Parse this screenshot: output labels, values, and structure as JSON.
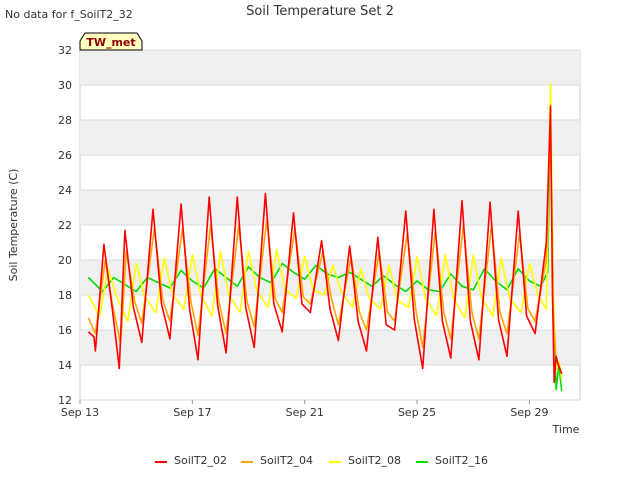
{
  "chart_data": {
    "type": "line",
    "title": "Soil Temperature Set 2",
    "no_data_note": "No data for f_SoilT2_32",
    "badge": "TW_met",
    "xlabel": "Time",
    "ylabel": "Soil Temperature (C)",
    "x_ticks": [
      {
        "day": 13,
        "label": "Sep 13"
      },
      {
        "day": 17,
        "label": "Sep 17"
      },
      {
        "day": 21,
        "label": "Sep 21"
      },
      {
        "day": 25,
        "label": "Sep 25"
      },
      {
        "day": 29,
        "label": "Sep 29"
      }
    ],
    "y_ticks": [
      12,
      14,
      16,
      18,
      20,
      22,
      24,
      26,
      28,
      30,
      32
    ],
    "xlim_days": [
      13.0,
      30.8
    ],
    "ylim": [
      12,
      32
    ],
    "grid": true,
    "legend_position": "bottom",
    "x_unit_note": "x values are fractional day-of-month in September",
    "series": [
      {
        "name": "SoilT2_02",
        "color": "#ff0000",
        "x": [
          13.3,
          13.5,
          13.55,
          13.85,
          14.15,
          14.4,
          14.6,
          14.9,
          15.2,
          15.6,
          15.9,
          16.2,
          16.6,
          16.9,
          17.2,
          17.6,
          17.9,
          18.2,
          18.6,
          18.9,
          19.2,
          19.6,
          19.9,
          20.2,
          20.6,
          20.9,
          21.2,
          21.6,
          21.9,
          22.2,
          22.6,
          22.9,
          23.2,
          23.6,
          23.9,
          24.2,
          24.6,
          24.9,
          25.2,
          25.6,
          25.9,
          26.2,
          26.6,
          26.9,
          27.2,
          27.6,
          27.9,
          28.2,
          28.6,
          28.9,
          29.2,
          29.6,
          29.75,
          29.82,
          29.88,
          29.95,
          30.05,
          30.15
        ],
        "values": [
          15.9,
          15.6,
          14.8,
          20.9,
          17.2,
          13.8,
          21.7,
          17.3,
          15.3,
          22.9,
          17.5,
          15.5,
          23.2,
          17.2,
          14.3,
          23.6,
          17.4,
          14.7,
          23.6,
          17.3,
          15.0,
          23.8,
          17.5,
          15.9,
          22.7,
          17.5,
          17.0,
          21.1,
          17.2,
          15.4,
          20.8,
          16.5,
          14.8,
          21.3,
          16.3,
          16.0,
          22.8,
          16.6,
          13.8,
          22.9,
          16.5,
          14.4,
          23.4,
          16.5,
          14.3,
          23.3,
          16.6,
          14.5,
          22.8,
          16.8,
          15.8,
          21.0,
          28.8,
          18.0,
          13.0,
          14.5,
          13.9,
          13.5
        ]
      },
      {
        "name": "SoilT2_04",
        "color": "#ffa500",
        "x": [
          13.3,
          13.55,
          13.9,
          14.15,
          14.45,
          14.65,
          14.95,
          15.2,
          15.65,
          15.95,
          16.2,
          16.65,
          16.95,
          17.2,
          17.65,
          17.95,
          18.2,
          18.65,
          18.95,
          19.2,
          19.65,
          19.95,
          20.2,
          20.65,
          20.95,
          21.2,
          21.65,
          21.95,
          22.2,
          22.65,
          22.95,
          23.2,
          23.65,
          23.95,
          24.2,
          24.65,
          24.95,
          25.2,
          25.65,
          25.95,
          26.2,
          26.65,
          26.95,
          27.2,
          27.65,
          27.95,
          28.2,
          28.65,
          28.95,
          29.2,
          29.6,
          29.75,
          29.85,
          29.95,
          30.05,
          30.15
        ],
        "values": [
          16.7,
          15.8,
          20.0,
          17.5,
          15.2,
          20.5,
          17.6,
          16.4,
          21.8,
          17.7,
          16.5,
          21.8,
          17.6,
          15.7,
          22.0,
          17.6,
          15.8,
          22.0,
          17.6,
          16.2,
          22.3,
          17.8,
          17.0,
          21.8,
          17.9,
          17.5,
          20.5,
          17.8,
          16.3,
          20.2,
          17.0,
          16.0,
          20.5,
          17.0,
          16.5,
          21.5,
          17.2,
          15.0,
          21.7,
          17.0,
          15.5,
          22.0,
          17.0,
          15.5,
          22.0,
          17.0,
          15.8,
          21.5,
          17.2,
          16.5,
          20.0,
          28.0,
          17.0,
          14.2,
          14.0,
          13.5
        ]
      },
      {
        "name": "SoilT2_08",
        "color": "#ffff00",
        "x": [
          13.3,
          13.7,
          14.0,
          14.3,
          14.7,
          15.0,
          15.3,
          15.7,
          16.0,
          16.3,
          16.7,
          17.0,
          17.3,
          17.7,
          18.0,
          18.3,
          18.7,
          19.0,
          19.3,
          19.7,
          20.0,
          20.3,
          20.7,
          21.0,
          21.3,
          21.7,
          22.0,
          22.3,
          22.7,
          23.0,
          23.3,
          23.7,
          24.0,
          24.3,
          24.7,
          25.0,
          25.3,
          25.7,
          26.0,
          26.3,
          26.7,
          27.0,
          27.3,
          27.7,
          28.0,
          28.3,
          28.7,
          29.0,
          29.3,
          29.6,
          29.75,
          29.85,
          29.95,
          30.05,
          30.15
        ],
        "values": [
          18.0,
          16.8,
          19.5,
          17.9,
          16.5,
          19.8,
          17.9,
          17.0,
          20.1,
          18.0,
          17.2,
          20.3,
          18.0,
          16.8,
          20.5,
          18.0,
          17.0,
          20.5,
          18.2,
          17.3,
          20.6,
          18.3,
          17.8,
          20.2,
          18.3,
          18.0,
          19.7,
          18.2,
          17.3,
          19.5,
          17.8,
          17.2,
          19.7,
          17.7,
          17.3,
          20.2,
          17.8,
          16.8,
          20.3,
          17.8,
          16.7,
          20.3,
          17.8,
          16.8,
          20.1,
          17.8,
          17.0,
          19.8,
          18.0,
          17.2,
          30.1,
          18.0,
          13.7,
          14.2,
          13.2
        ]
      },
      {
        "name": "SoilT2_16",
        "color": "#00dd00",
        "x": [
          13.3,
          13.8,
          14.2,
          14.6,
          15.0,
          15.4,
          15.8,
          16.2,
          16.6,
          17.0,
          17.4,
          17.8,
          18.2,
          18.6,
          19.0,
          19.4,
          19.8,
          20.2,
          20.6,
          21.0,
          21.4,
          21.8,
          22.2,
          22.6,
          23.0,
          23.4,
          23.8,
          24.2,
          24.6,
          25.0,
          25.4,
          25.8,
          26.2,
          26.6,
          27.0,
          27.4,
          27.8,
          28.2,
          28.6,
          29.0,
          29.4,
          29.65,
          29.75,
          29.85,
          29.95,
          30.05,
          30.15
        ],
        "values": [
          19.0,
          18.2,
          19.0,
          18.6,
          18.2,
          19.0,
          18.7,
          18.4,
          19.4,
          18.8,
          18.4,
          19.5,
          19.0,
          18.5,
          19.6,
          19.0,
          18.7,
          19.8,
          19.3,
          18.9,
          19.7,
          19.2,
          19.0,
          19.3,
          18.9,
          18.5,
          19.1,
          18.6,
          18.2,
          18.8,
          18.3,
          18.2,
          19.2,
          18.5,
          18.3,
          19.5,
          18.8,
          18.3,
          19.5,
          18.8,
          18.5,
          19.3,
          28.5,
          17.5,
          12.6,
          14.0,
          12.5
        ]
      }
    ]
  }
}
